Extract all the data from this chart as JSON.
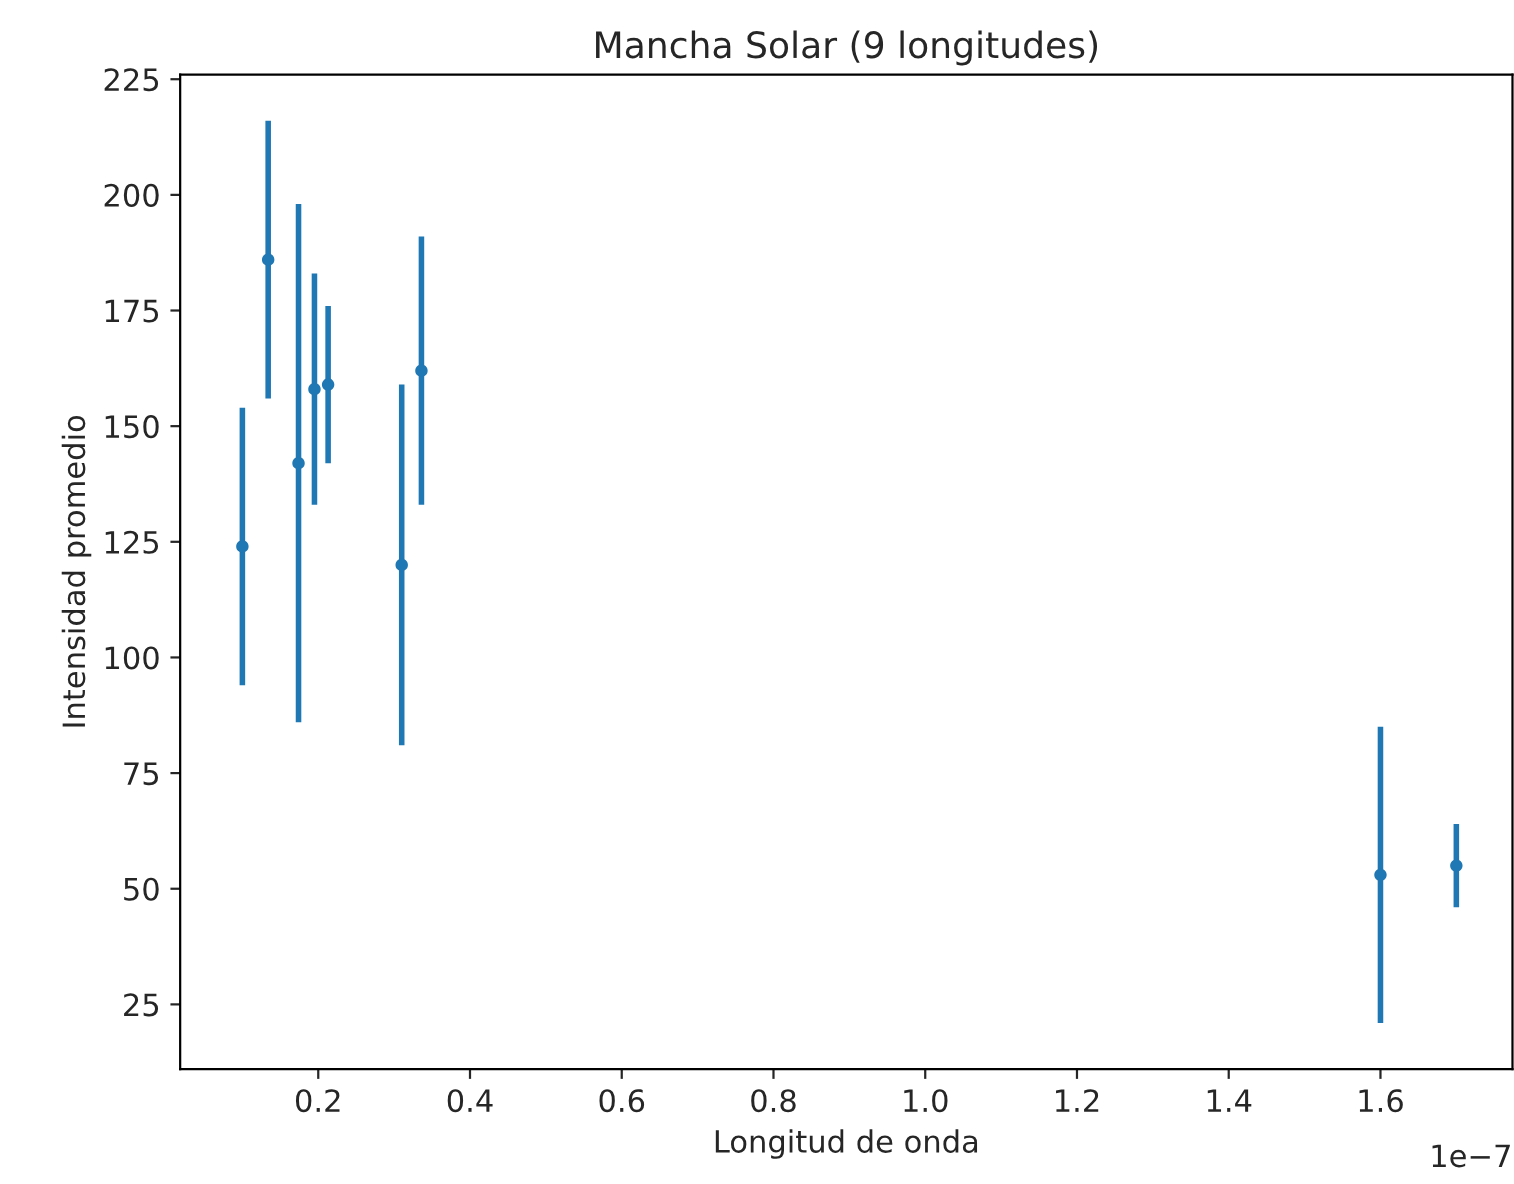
{
  "chart_data": {
    "type": "scatter",
    "title": "Mancha Solar (9 longitudes)",
    "xlabel": "Longitud de onda",
    "ylabel": "Intensidad promedio",
    "x": [
      0.1,
      0.134,
      0.174,
      0.195,
      0.213,
      0.31,
      0.336,
      1.6,
      1.7
    ],
    "series": [
      {
        "color": "#1f77b4",
        "values": [
          124,
          186,
          142,
          158,
          159,
          120,
          162,
          53,
          55
        ],
        "errors": [
          30,
          30,
          56,
          25,
          17,
          39,
          29,
          32,
          9
        ]
      }
    ],
    "marker": "circle",
    "xlim": [
      0.018,
      1.774
    ],
    "xticks": [
      0.2,
      0.4,
      0.6,
      0.8,
      {
        "value": 1,
        "label": "1.0"
      },
      1.2,
      1.4,
      1.6
    ],
    "ylim": [
      11,
      226
    ],
    "yticks": [
      25,
      50,
      75,
      100,
      125,
      150,
      175,
      200,
      225
    ],
    "annotations": [
      "1e−7"
    ],
    "grid": false,
    "legend": false
  }
}
